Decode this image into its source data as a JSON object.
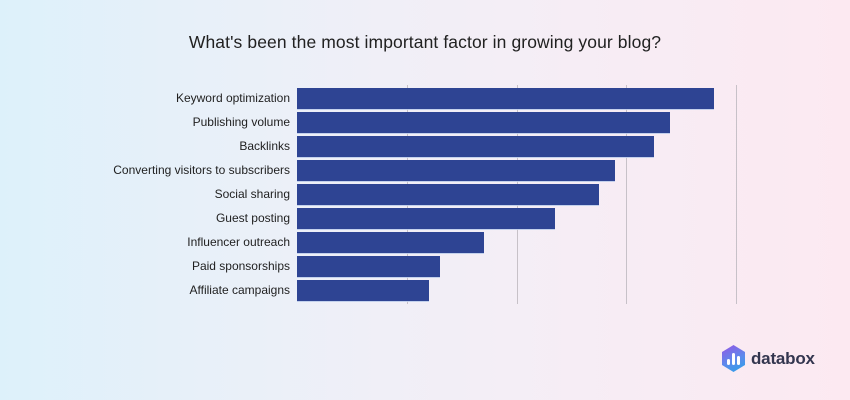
{
  "page": {
    "title": "What's been the most important factor in growing your blog?"
  },
  "branding": {
    "logo_text": "databox",
    "logo_icon": "databox-hexagon-bar-chart-icon",
    "logo_gradient_start": "#8a5fe6",
    "logo_gradient_end": "#2f9fe8",
    "logo_text_color": "#33364f"
  },
  "colors": {
    "bar": "#2e4493",
    "gridline": "#c7c1c8",
    "background_left": "#ddf1fa",
    "background_right": "#fce9f1",
    "title_text": "#212121",
    "label_text": "#1f1f1f"
  },
  "chart_data": {
    "type": "bar",
    "orientation": "horizontal",
    "title": "What's been the most important factor in growing your blog?",
    "categories": [
      "Keyword optimization",
      "Publishing volume",
      "Backlinks",
      "Converting visitors to subscribers",
      "Social sharing",
      "Guest posting",
      "Influencer outreach",
      "Paid sponsorships",
      "Affiliate campaigns"
    ],
    "values": [
      38,
      34,
      32.5,
      29,
      27.5,
      23.5,
      17,
      13,
      12
    ],
    "xlim": [
      0,
      40
    ],
    "gridlines_x": [
      10,
      20,
      30,
      40
    ],
    "xlabel": "",
    "ylabel": "",
    "axis_tick_labels_visible": false,
    "legend": "none",
    "grid": "vertical-only",
    "note": "axis unlabeled in source image; values estimated from gridline spacing"
  }
}
